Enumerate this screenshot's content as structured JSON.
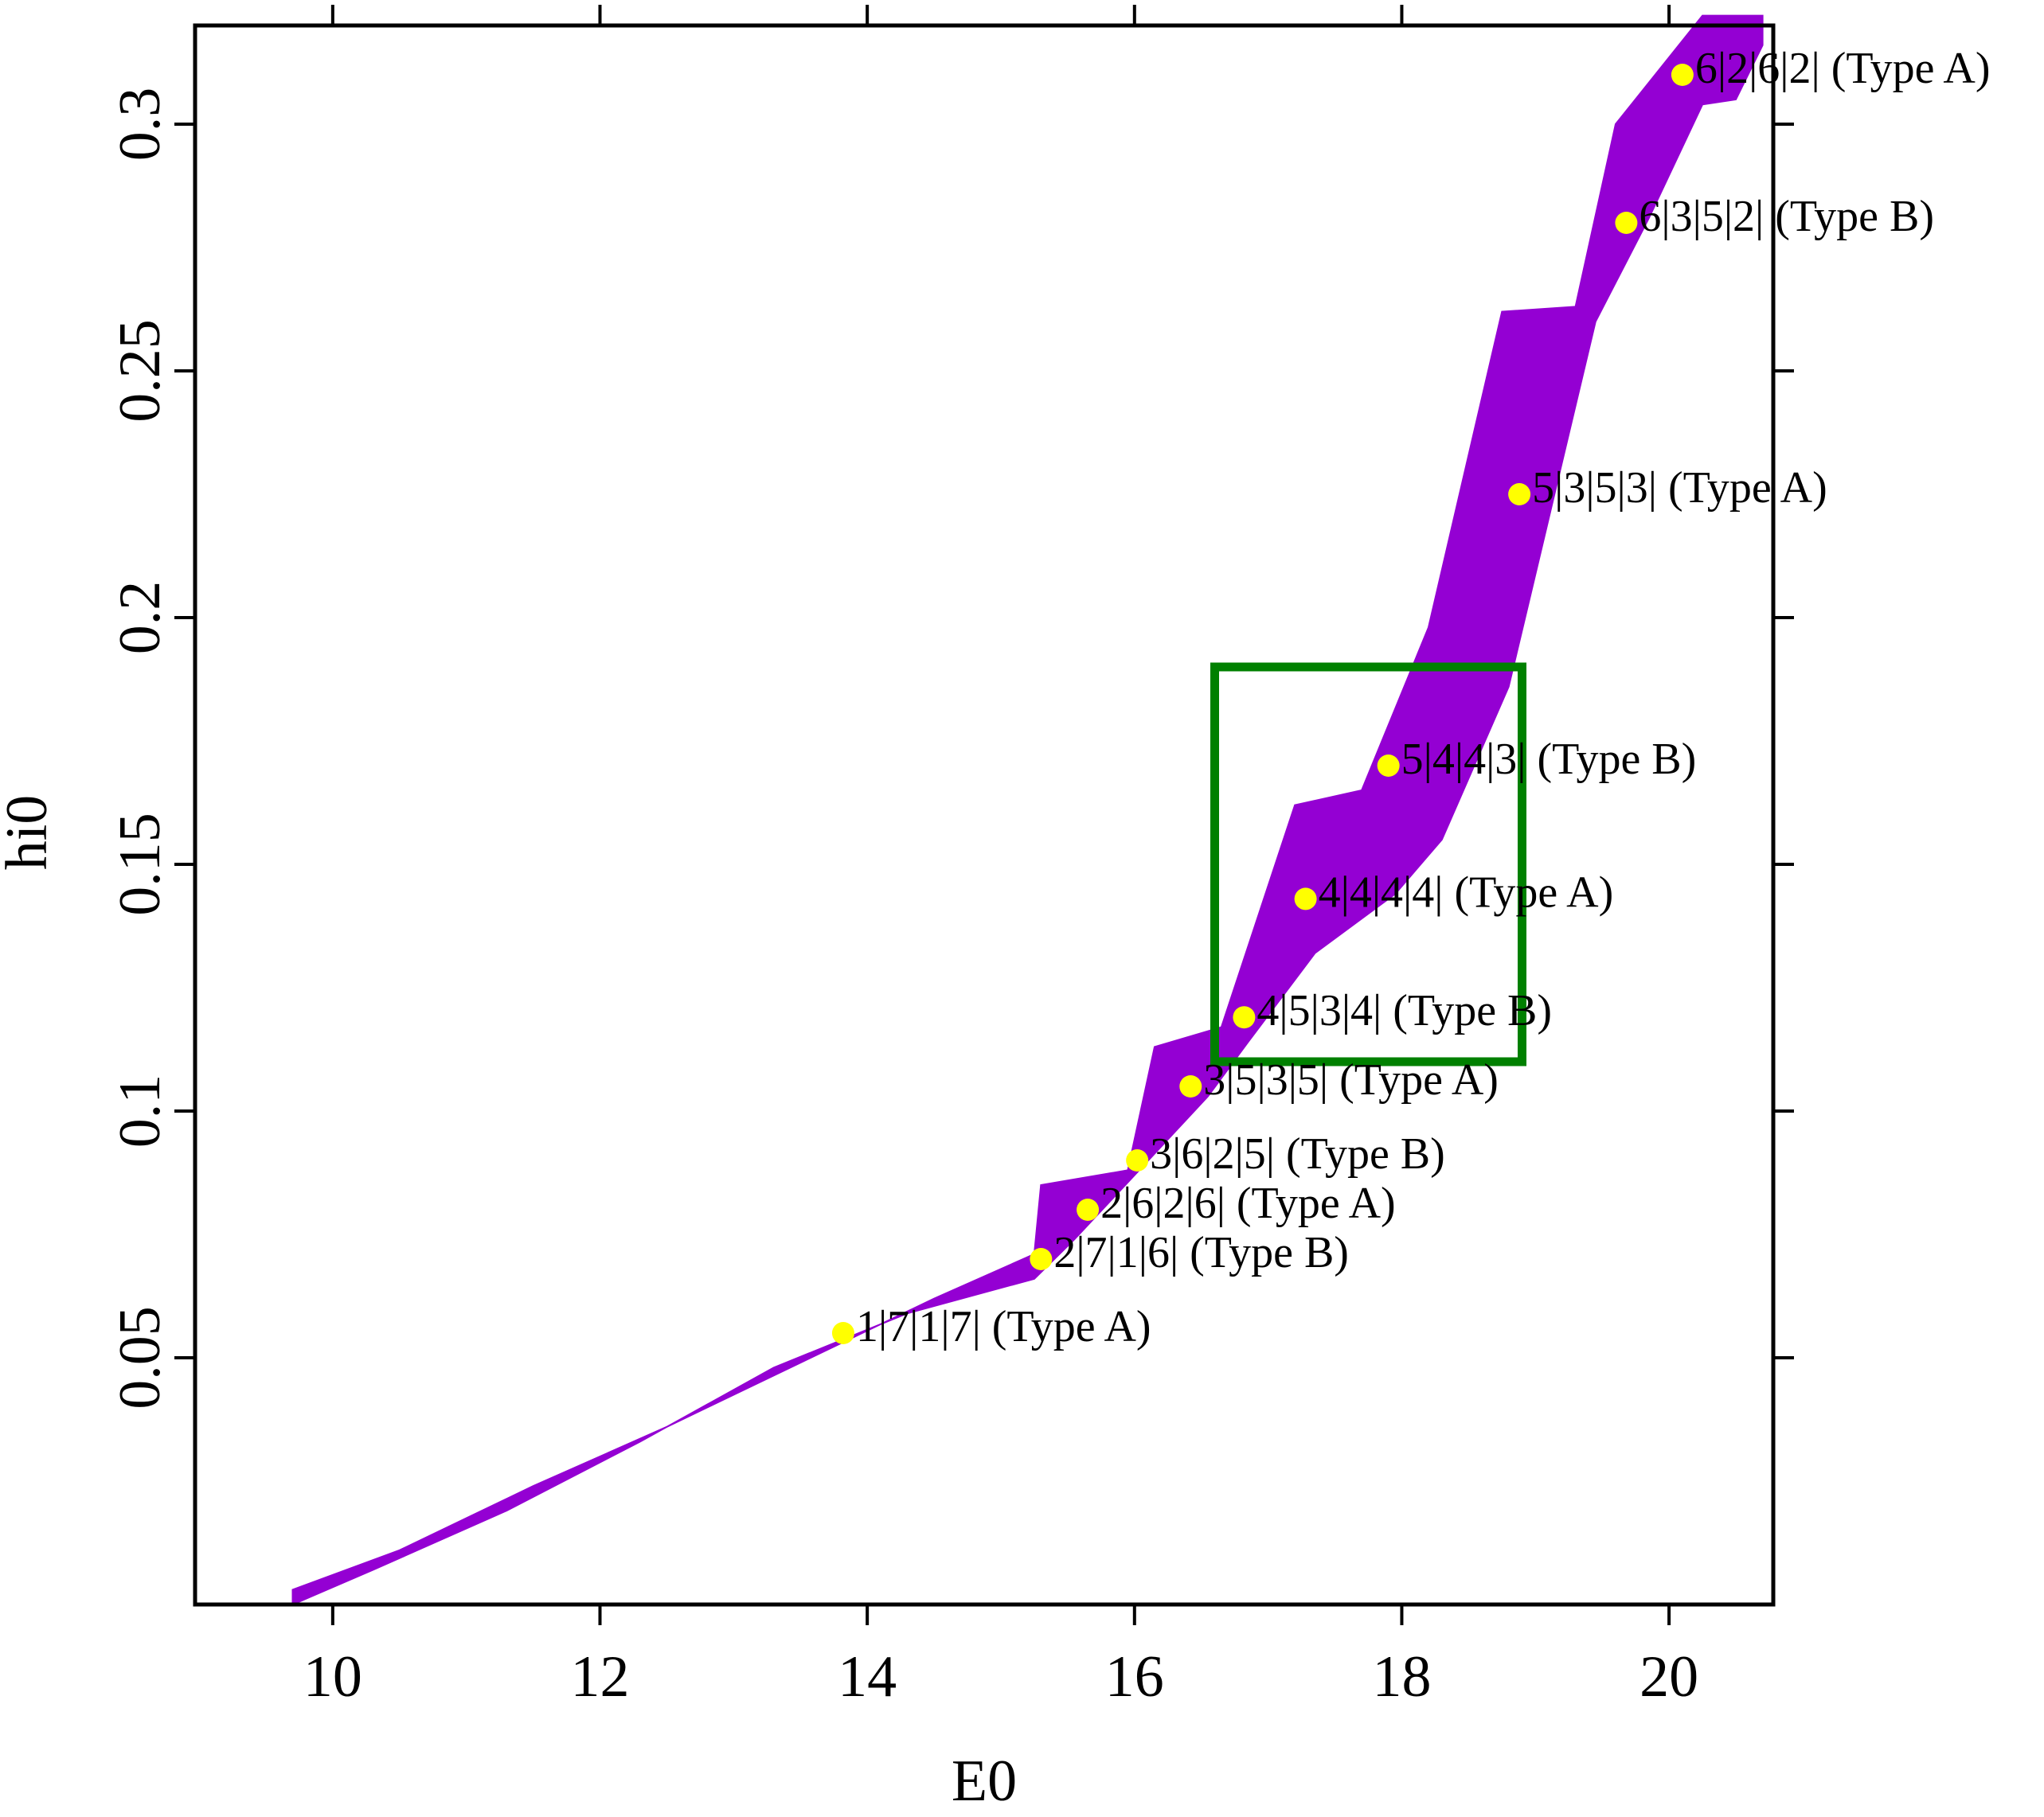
{
  "chart_data": {
    "type": "scatter",
    "title": "",
    "xlabel": "E0",
    "ylabel": "hi0",
    "xlim": [
      8.97,
      20.78
    ],
    "ylim": [
      0.0,
      0.32
    ],
    "xticks": [
      10,
      12,
      14,
      16,
      18,
      20
    ],
    "xtick_labels": [
      "10",
      "12",
      "14",
      "16",
      "18",
      "20"
    ],
    "yticks": [
      0.05,
      0.1,
      0.15,
      0.2,
      0.25,
      0.3
    ],
    "ytick_labels": [
      "0.05",
      "0.1",
      "0.15",
      "0.2",
      "0.25",
      "0.3"
    ],
    "grid": false,
    "legend": "none",
    "colors": {
      "band": "#9400d3",
      "points": "#ffff00",
      "box": "#008000"
    },
    "band": {
      "description": "purple region",
      "top": [
        [
          9.7,
          0.003
        ],
        [
          10.5,
          0.011
        ],
        [
          11.5,
          0.024
        ],
        [
          12.5,
          0.036
        ],
        [
          13.5,
          0.049
        ],
        [
          14.5,
          0.062
        ],
        [
          15.25,
          0.071
        ],
        [
          15.3,
          0.085
        ],
        [
          15.95,
          0.088
        ],
        [
          16.15,
          0.113
        ],
        [
          16.65,
          0.117
        ],
        [
          17.2,
          0.162
        ],
        [
          17.7,
          0.165
        ],
        [
          18.2,
          0.198
        ],
        [
          18.75,
          0.262
        ],
        [
          19.3,
          0.263
        ],
        [
          19.6,
          0.3
        ],
        [
          20.25,
          0.322
        ],
        [
          20.7,
          0.322
        ]
      ],
      "bottom": [
        [
          20.7,
          0.316
        ],
        [
          20.5,
          0.305
        ],
        [
          20.25,
          0.304
        ],
        [
          19.85,
          0.281
        ],
        [
          19.45,
          0.26
        ],
        [
          18.8,
          0.186
        ],
        [
          18.3,
          0.155
        ],
        [
          17.95,
          0.144
        ],
        [
          17.35,
          0.132
        ],
        [
          16.85,
          0.114
        ],
        [
          16.55,
          0.103
        ],
        [
          16.0,
          0.087
        ],
        [
          15.55,
          0.074
        ],
        [
          15.25,
          0.066
        ],
        [
          14.3,
          0.059
        ],
        [
          13.3,
          0.048
        ],
        [
          12.3,
          0.033
        ],
        [
          11.3,
          0.019
        ],
        [
          10.3,
          0.007
        ],
        [
          9.7,
          0.0
        ]
      ]
    },
    "box": {
      "x": [
        16.6,
        18.9
      ],
      "y": [
        0.11,
        0.19
      ]
    },
    "points": [
      {
        "x": 13.82,
        "y": 0.055,
        "label": "1|7|1|7| (Type A)"
      },
      {
        "x": 15.3,
        "y": 0.07,
        "label": "2|7|1|6| (Type B)"
      },
      {
        "x": 15.65,
        "y": 0.08,
        "label": "2|6|2|6| (Type A)"
      },
      {
        "x": 16.02,
        "y": 0.09,
        "label": "3|6|2|5| (Type B)"
      },
      {
        "x": 16.42,
        "y": 0.105,
        "label": "3|5|3|5| (Type A)"
      },
      {
        "x": 16.82,
        "y": 0.119,
        "label": "4|5|3|4| (Type B)"
      },
      {
        "x": 17.28,
        "y": 0.143,
        "label": "4|4|4|4| (Type A)"
      },
      {
        "x": 17.9,
        "y": 0.17,
        "label": "5|4|4|3| (Type B)"
      },
      {
        "x": 18.88,
        "y": 0.225,
        "label": "5|3|5|3| (Type A)"
      },
      {
        "x": 19.68,
        "y": 0.28,
        "label": "6|3|5|2| (Type B)"
      },
      {
        "x": 20.1,
        "y": 0.31,
        "label": "6|2|6|2| (Type A)"
      }
    ]
  }
}
